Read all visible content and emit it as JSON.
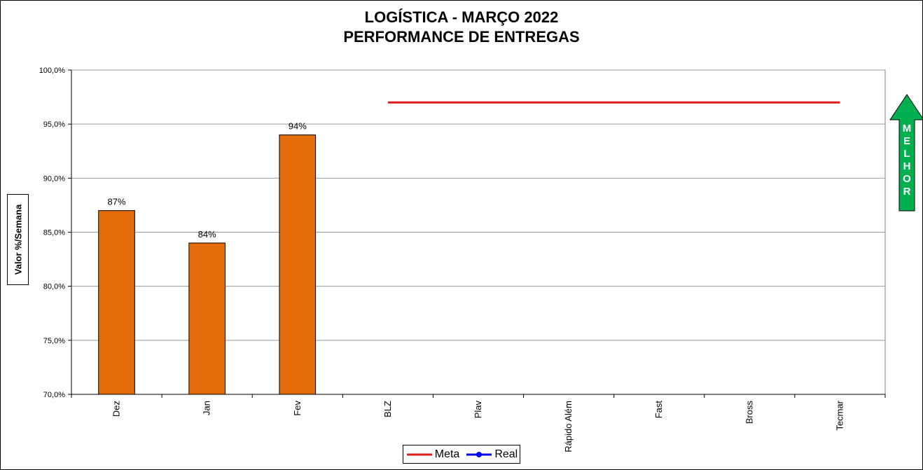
{
  "chart_data": {
    "type": "bar",
    "title": "LOGÍSTICA - MARÇO 2022",
    "subtitle": "PERFORMANCE DE ENTREGAS",
    "ylabel": "Valor %/Semana",
    "xlabel": "",
    "categories": [
      "Dez",
      "Jan",
      "Fev",
      "BLZ",
      "Plav",
      "Rápido Além",
      "Fast",
      "Bross",
      "Tecmar"
    ],
    "ylim": [
      70.0,
      100.0
    ],
    "yticks": [
      70.0,
      75.0,
      80.0,
      85.0,
      90.0,
      95.0,
      100.0
    ],
    "ytick_labels": [
      "70,0%",
      "75,0%",
      "80,0%",
      "85,0%",
      "90,0%",
      "95,0%",
      "100,0%"
    ],
    "grid": true,
    "legend_position": "bottom",
    "series": [
      {
        "name": "Real",
        "type": "bar",
        "color": "#E46C0A",
        "values": [
          87,
          84,
          94,
          null,
          null,
          null,
          null,
          null,
          null
        ],
        "data_labels": [
          "87%",
          "84%",
          "94%",
          "",
          "",
          "",
          "",
          "",
          ""
        ]
      },
      {
        "name": "Meta",
        "type": "line",
        "color": "#E31A1C",
        "values": [
          null,
          null,
          null,
          97,
          97,
          97,
          97,
          97,
          97
        ]
      }
    ],
    "legend": [
      {
        "name": "Meta",
        "color": "#E31A1C",
        "marker": "none"
      },
      {
        "name": "Real",
        "color": "#0000FF",
        "marker": "circle"
      }
    ],
    "annotation": {
      "text": "MELHOR",
      "color": "#00B050",
      "icon": "arrow-up-icon"
    }
  }
}
